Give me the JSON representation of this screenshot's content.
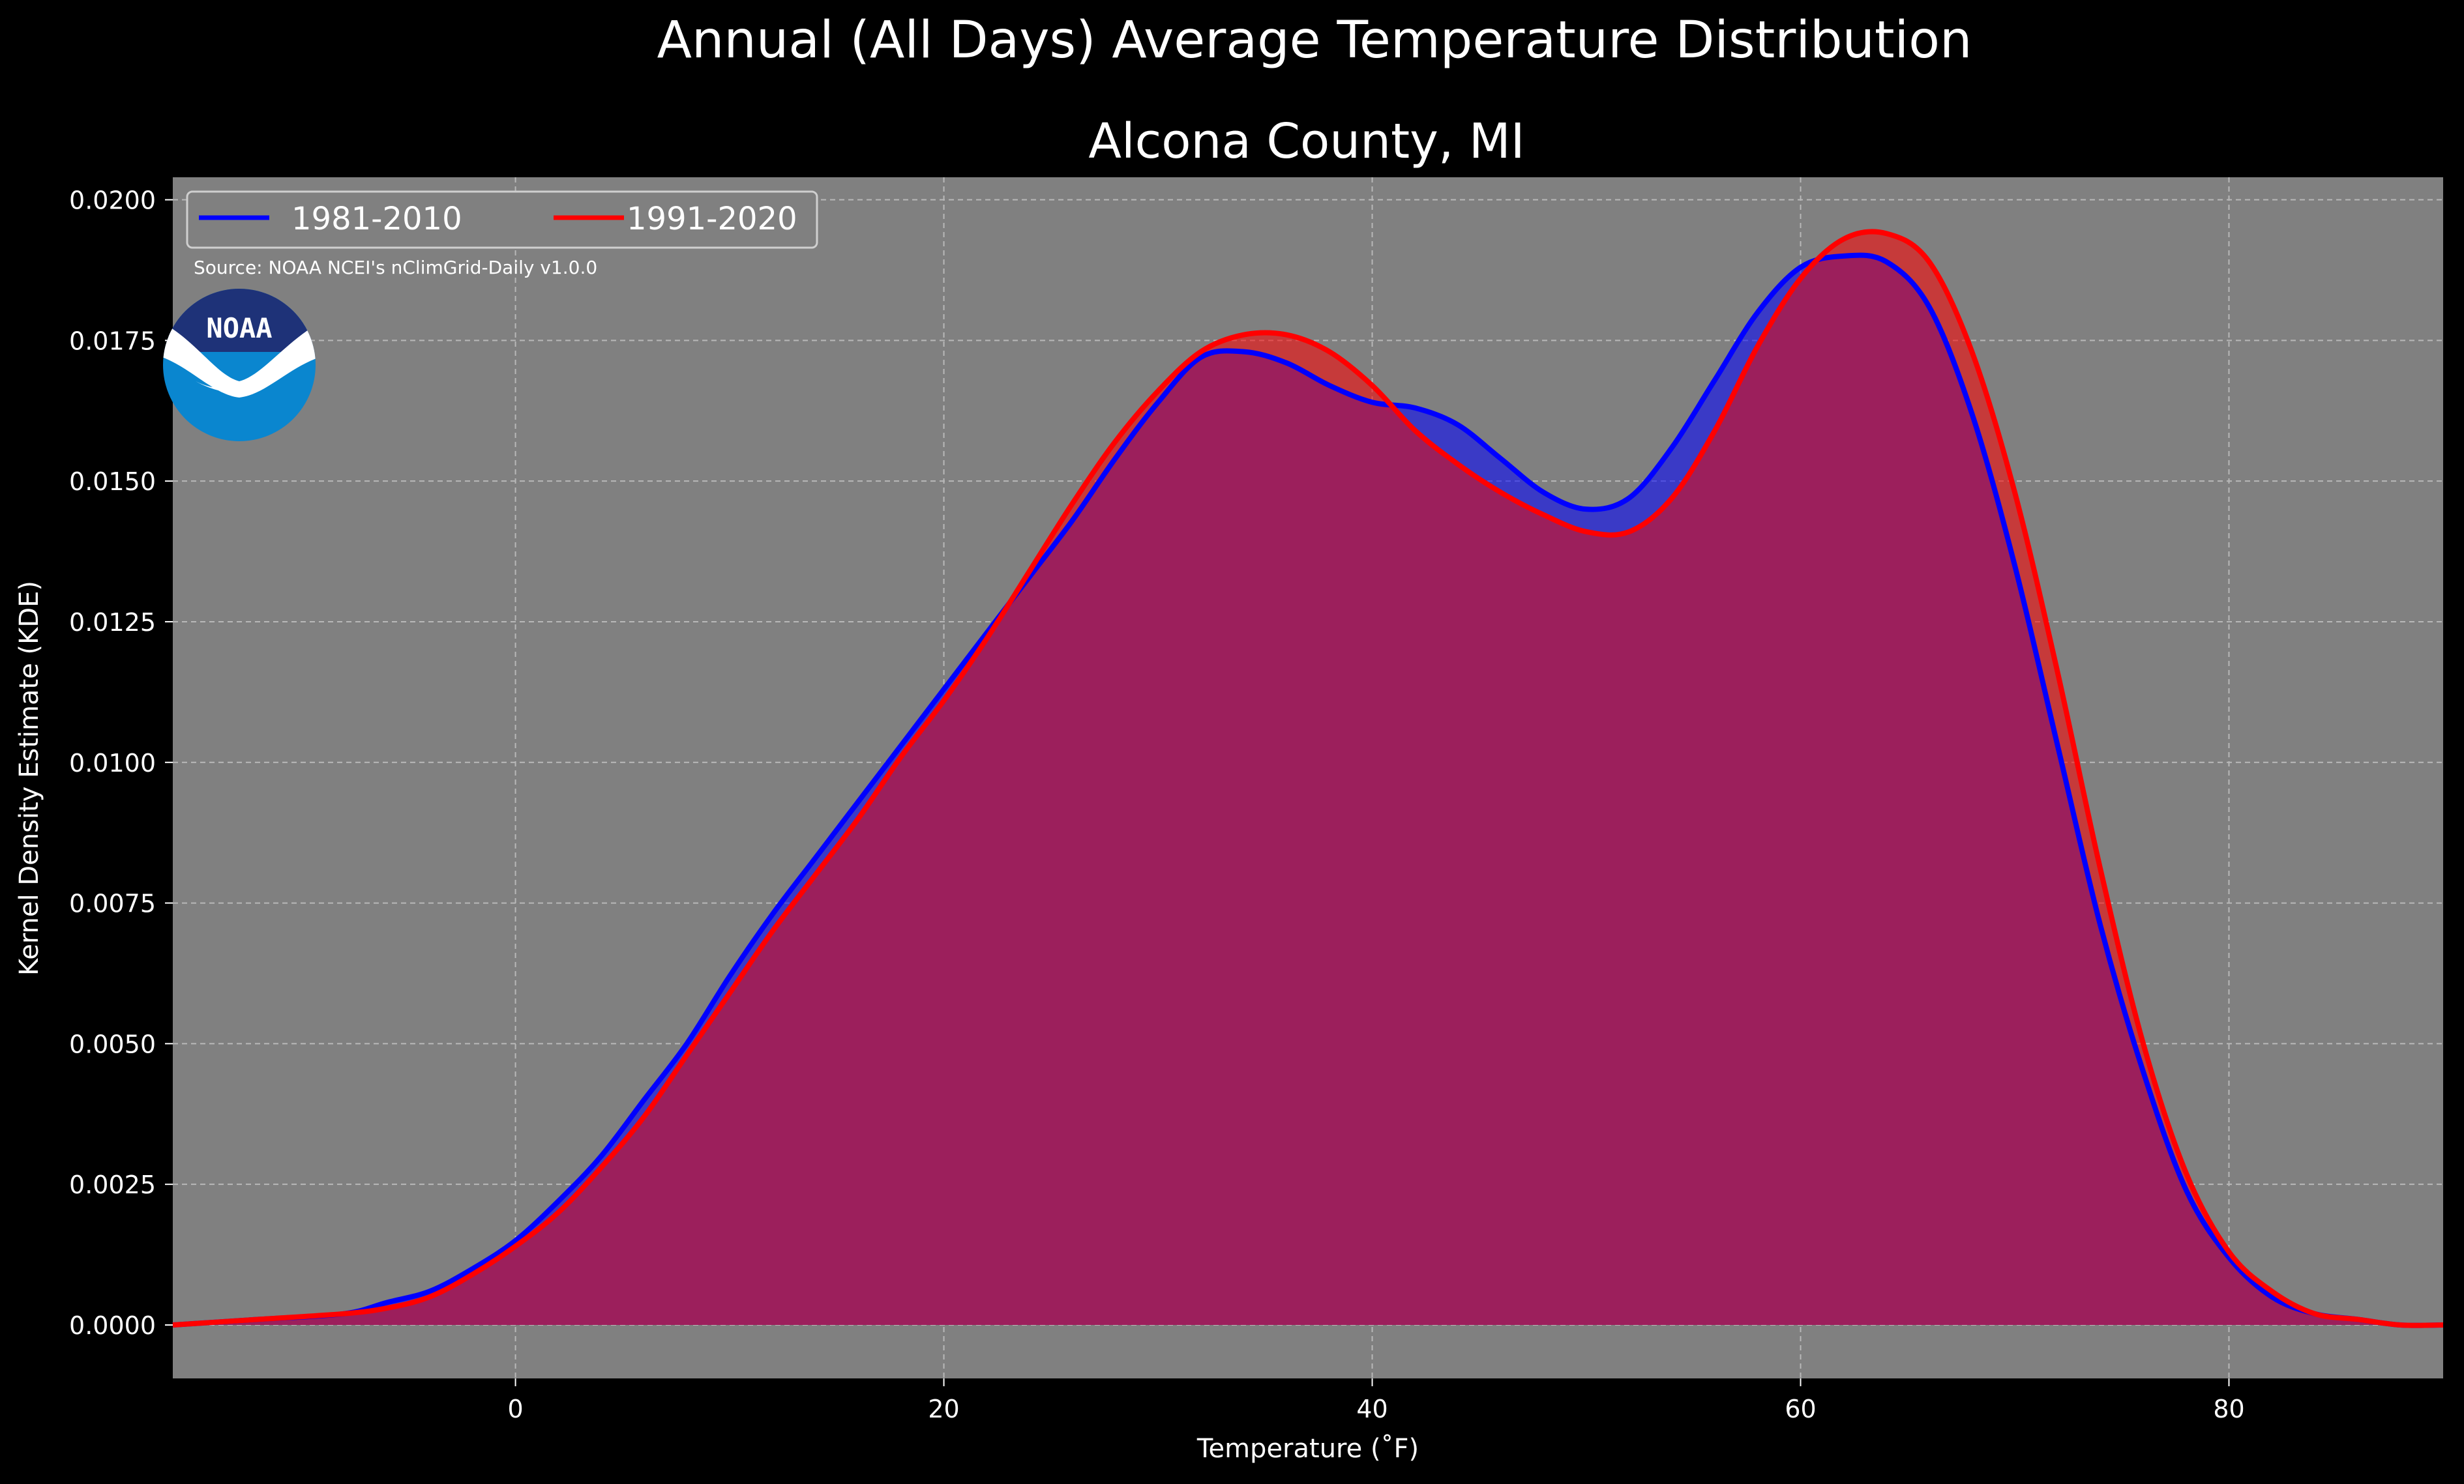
{
  "figure": {
    "suptitle": "Annual (All Days) Average Temperature Distribution",
    "source_note": "Source: NOAA NCEI's nClimGrid-Daily v1.0.0",
    "logo_text": "NOAA"
  },
  "colors": {
    "background": "#000000",
    "plot_background": "#808080",
    "series_1981": "#0000ff",
    "series_1991": "#ff0000",
    "overlap_fill": "#9c1f5c"
  },
  "chart_data": {
    "type": "area",
    "title": "Alcona County, MI",
    "xlabel": "Temperature (˚F)",
    "ylabel": "Kernel Density Estimate (KDE)",
    "xlim": [
      -16,
      90
    ],
    "ylim": [
      -0.00095,
      0.0204
    ],
    "grid": true,
    "legend_position": "top-left",
    "x_ticks": [
      0,
      20,
      40,
      60,
      80
    ],
    "x_tick_labels": [
      "0",
      "20",
      "40",
      "60",
      "80"
    ],
    "y_ticks": [
      0,
      0.0025,
      0.005,
      0.0075,
      0.01,
      0.0125,
      0.015,
      0.0175,
      0.02
    ],
    "y_tick_labels": [
      "0.0000",
      "0.0025",
      "0.0050",
      "0.0075",
      "0.0100",
      "0.0125",
      "0.0150",
      "0.0175",
      "0.0200"
    ],
    "x": [
      -16,
      -12,
      -8,
      -6,
      -4,
      -2,
      0,
      2,
      4,
      6,
      8,
      10,
      12,
      14,
      16,
      18,
      20,
      22,
      24,
      26,
      28,
      30,
      32,
      34,
      36,
      38,
      40,
      42,
      44,
      46,
      48,
      50,
      52,
      54,
      56,
      58,
      60,
      62,
      64,
      66,
      68,
      70,
      72,
      74,
      76,
      78,
      80,
      82,
      84,
      86,
      88,
      90
    ],
    "series": [
      {
        "name": "1981-2010",
        "color": "#0000ff",
        "values": [
          0.0,
          0.0001,
          0.0002,
          0.0004,
          0.0006,
          0.001,
          0.0015,
          0.0022,
          0.003,
          0.004,
          0.005,
          0.0062,
          0.0073,
          0.0083,
          0.0093,
          0.0103,
          0.0113,
          0.0123,
          0.0133,
          0.0143,
          0.0154,
          0.0164,
          0.0172,
          0.0173,
          0.0171,
          0.0167,
          0.0164,
          0.0163,
          0.016,
          0.0154,
          0.0148,
          0.0145,
          0.0147,
          0.0156,
          0.0168,
          0.018,
          0.0188,
          0.019,
          0.0189,
          0.0181,
          0.0162,
          0.0135,
          0.0103,
          0.0071,
          0.0045,
          0.0024,
          0.0012,
          0.0005,
          0.0002,
          0.0001,
          0.0,
          0.0
        ]
      },
      {
        "name": "1991-2020",
        "color": "#ff0000",
        "values": [
          0.0,
          0.0001,
          0.0002,
          0.0003,
          0.0005,
          0.0009,
          0.0014,
          0.002,
          0.0028,
          0.0037,
          0.0048,
          0.0059,
          0.007,
          0.008,
          0.009,
          0.0101,
          0.0111,
          0.0122,
          0.0134,
          0.0146,
          0.0157,
          0.0166,
          0.0173,
          0.0176,
          0.0176,
          0.0173,
          0.0167,
          0.0159,
          0.0153,
          0.0148,
          0.0144,
          0.0141,
          0.0141,
          0.0147,
          0.0159,
          0.0174,
          0.0186,
          0.0193,
          0.0194,
          0.0189,
          0.0173,
          0.0148,
          0.0116,
          0.0081,
          0.005,
          0.0027,
          0.0013,
          0.0006,
          0.0002,
          0.0001,
          0.0,
          0.0
        ]
      }
    ]
  }
}
